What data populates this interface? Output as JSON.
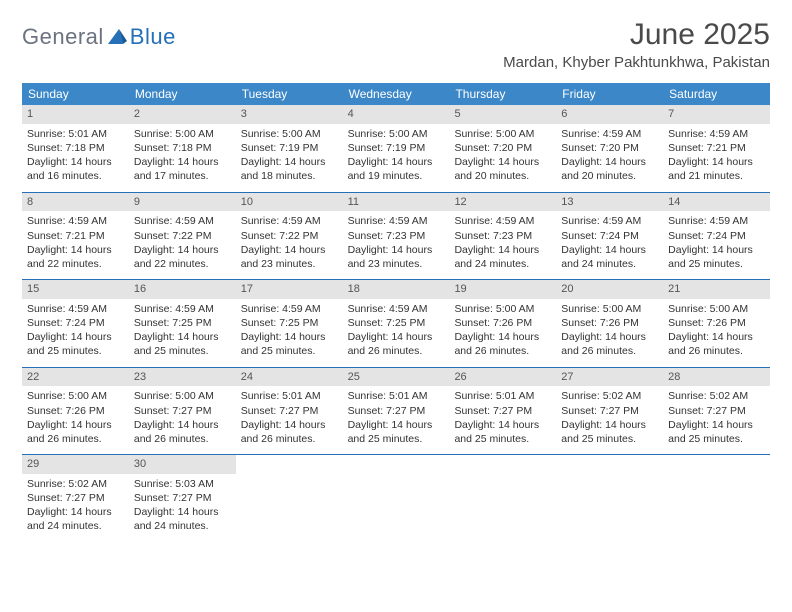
{
  "logo": {
    "text_gray": "General",
    "text_blue": "Blue"
  },
  "title": "June 2025",
  "location": "Mardan, Khyber Pakhtunkhwa, Pakistan",
  "colors": {
    "header_bg": "#3b87c8",
    "row_border": "#2570b8",
    "daynum_bg": "#e4e4e4",
    "text": "#333333",
    "logo_gray": "#6b7280",
    "logo_blue": "#2570b8"
  },
  "weekdays": [
    "Sunday",
    "Monday",
    "Tuesday",
    "Wednesday",
    "Thursday",
    "Friday",
    "Saturday"
  ],
  "weeks": [
    [
      {
        "n": "1",
        "sr": "5:01 AM",
        "ss": "7:18 PM",
        "dl": "14 hours and 16 minutes."
      },
      {
        "n": "2",
        "sr": "5:00 AM",
        "ss": "7:18 PM",
        "dl": "14 hours and 17 minutes."
      },
      {
        "n": "3",
        "sr": "5:00 AM",
        "ss": "7:19 PM",
        "dl": "14 hours and 18 minutes."
      },
      {
        "n": "4",
        "sr": "5:00 AM",
        "ss": "7:19 PM",
        "dl": "14 hours and 19 minutes."
      },
      {
        "n": "5",
        "sr": "5:00 AM",
        "ss": "7:20 PM",
        "dl": "14 hours and 20 minutes."
      },
      {
        "n": "6",
        "sr": "4:59 AM",
        "ss": "7:20 PM",
        "dl": "14 hours and 20 minutes."
      },
      {
        "n": "7",
        "sr": "4:59 AM",
        "ss": "7:21 PM",
        "dl": "14 hours and 21 minutes."
      }
    ],
    [
      {
        "n": "8",
        "sr": "4:59 AM",
        "ss": "7:21 PM",
        "dl": "14 hours and 22 minutes."
      },
      {
        "n": "9",
        "sr": "4:59 AM",
        "ss": "7:22 PM",
        "dl": "14 hours and 22 minutes."
      },
      {
        "n": "10",
        "sr": "4:59 AM",
        "ss": "7:22 PM",
        "dl": "14 hours and 23 minutes."
      },
      {
        "n": "11",
        "sr": "4:59 AM",
        "ss": "7:23 PM",
        "dl": "14 hours and 23 minutes."
      },
      {
        "n": "12",
        "sr": "4:59 AM",
        "ss": "7:23 PM",
        "dl": "14 hours and 24 minutes."
      },
      {
        "n": "13",
        "sr": "4:59 AM",
        "ss": "7:24 PM",
        "dl": "14 hours and 24 minutes."
      },
      {
        "n": "14",
        "sr": "4:59 AM",
        "ss": "7:24 PM",
        "dl": "14 hours and 25 minutes."
      }
    ],
    [
      {
        "n": "15",
        "sr": "4:59 AM",
        "ss": "7:24 PM",
        "dl": "14 hours and 25 minutes."
      },
      {
        "n": "16",
        "sr": "4:59 AM",
        "ss": "7:25 PM",
        "dl": "14 hours and 25 minutes."
      },
      {
        "n": "17",
        "sr": "4:59 AM",
        "ss": "7:25 PM",
        "dl": "14 hours and 25 minutes."
      },
      {
        "n": "18",
        "sr": "4:59 AM",
        "ss": "7:25 PM",
        "dl": "14 hours and 26 minutes."
      },
      {
        "n": "19",
        "sr": "5:00 AM",
        "ss": "7:26 PM",
        "dl": "14 hours and 26 minutes."
      },
      {
        "n": "20",
        "sr": "5:00 AM",
        "ss": "7:26 PM",
        "dl": "14 hours and 26 minutes."
      },
      {
        "n": "21",
        "sr": "5:00 AM",
        "ss": "7:26 PM",
        "dl": "14 hours and 26 minutes."
      }
    ],
    [
      {
        "n": "22",
        "sr": "5:00 AM",
        "ss": "7:26 PM",
        "dl": "14 hours and 26 minutes."
      },
      {
        "n": "23",
        "sr": "5:00 AM",
        "ss": "7:27 PM",
        "dl": "14 hours and 26 minutes."
      },
      {
        "n": "24",
        "sr": "5:01 AM",
        "ss": "7:27 PM",
        "dl": "14 hours and 26 minutes."
      },
      {
        "n": "25",
        "sr": "5:01 AM",
        "ss": "7:27 PM",
        "dl": "14 hours and 25 minutes."
      },
      {
        "n": "26",
        "sr": "5:01 AM",
        "ss": "7:27 PM",
        "dl": "14 hours and 25 minutes."
      },
      {
        "n": "27",
        "sr": "5:02 AM",
        "ss": "7:27 PM",
        "dl": "14 hours and 25 minutes."
      },
      {
        "n": "28",
        "sr": "5:02 AM",
        "ss": "7:27 PM",
        "dl": "14 hours and 25 minutes."
      }
    ],
    [
      {
        "n": "29",
        "sr": "5:02 AM",
        "ss": "7:27 PM",
        "dl": "14 hours and 24 minutes."
      },
      {
        "n": "30",
        "sr": "5:03 AM",
        "ss": "7:27 PM",
        "dl": "14 hours and 24 minutes."
      },
      null,
      null,
      null,
      null,
      null
    ]
  ],
  "labels": {
    "sunrise": "Sunrise:",
    "sunset": "Sunset:",
    "daylight": "Daylight:"
  }
}
